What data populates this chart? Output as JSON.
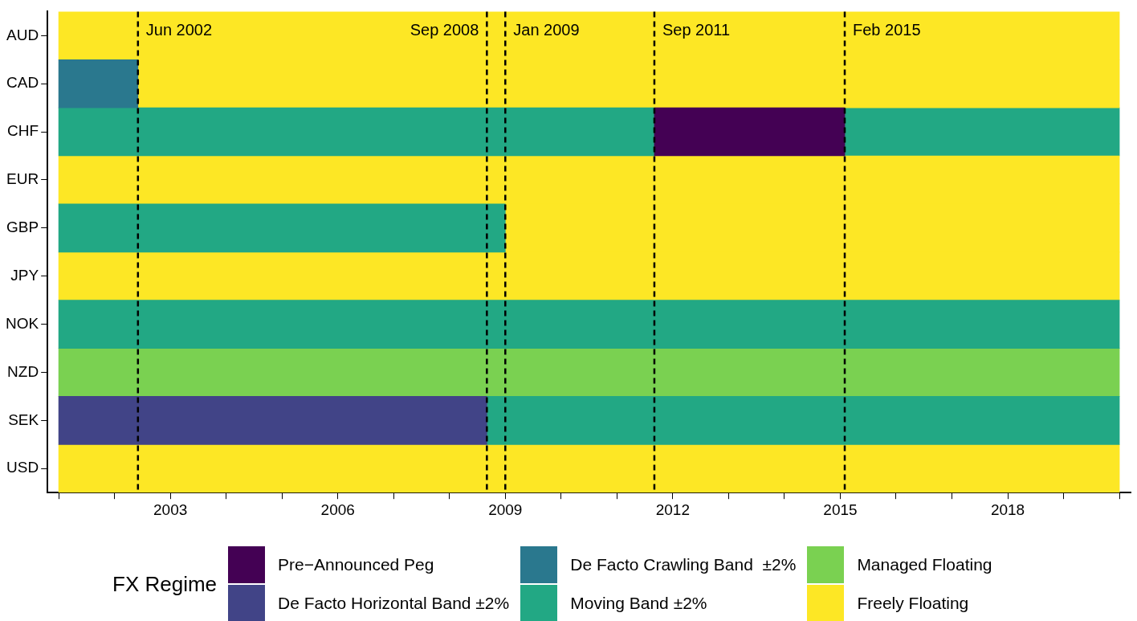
{
  "chart_data": {
    "type": "bar",
    "orientation": "horizontal",
    "legend": "bottom",
    "legend_title": "FX Regime",
    "categories": [
      "AUD",
      "CAD",
      "CHF",
      "EUR",
      "GBP",
      "JPY",
      "NOK",
      "NZD",
      "SEK",
      "USD"
    ],
    "xlim": [
      2000.8,
      2020.2
    ],
    "xticks": [
      {
        "value": 2001,
        "label": null
      },
      {
        "value": 2002,
        "label": null
      },
      2003,
      {
        "value": 2004,
        "label": null
      },
      {
        "value": 2005,
        "label": null
      },
      2006,
      {
        "value": 2007,
        "label": null
      },
      {
        "value": 2008,
        "label": null
      },
      2009,
      {
        "value": 2010,
        "label": null
      },
      {
        "value": 2011,
        "label": null
      },
      2012,
      {
        "value": 2013,
        "label": null
      },
      {
        "value": 2014,
        "label": null
      },
      2015,
      {
        "value": 2016,
        "label": null
      },
      {
        "value": 2017,
        "label": null
      },
      2018,
      {
        "value": 2019,
        "label": null
      },
      {
        "value": 2020,
        "label": null
      }
    ],
    "series": [
      {
        "name": "Pre−Announced Peg",
        "color": "#440154",
        "base": [
          null,
          null,
          2011.67,
          null,
          null,
          null,
          null,
          null,
          null,
          null
        ],
        "values": [
          null,
          null,
          3.41,
          null,
          null,
          null,
          null,
          null,
          null,
          null
        ]
      },
      {
        "name": "De Facto Horizontal Band ±2%",
        "color": "#414487",
        "base": [
          null,
          null,
          null,
          null,
          null,
          null,
          null,
          null,
          2001,
          null
        ],
        "values": [
          null,
          null,
          null,
          null,
          null,
          null,
          null,
          null,
          7.67,
          null
        ]
      },
      {
        "name": "De Facto Crawling Band  ±2%",
        "color": "#2a788e",
        "base": [
          null,
          2001,
          null,
          null,
          null,
          null,
          null,
          null,
          null,
          null
        ],
        "values": [
          null,
          1.42,
          null,
          null,
          null,
          null,
          null,
          null,
          null,
          null
        ]
      },
      {
        "name": "Moving Band ±2%",
        "color": "#22a884",
        "base": [
          null,
          null,
          2001,
          null,
          2001,
          null,
          2001,
          null,
          2008.67,
          null
        ],
        "values": [
          null,
          null,
          10.67,
          null,
          8,
          null,
          19,
          null,
          11.33,
          null
        ]
      },
      {
        "name": "Managed Floating",
        "color": "#7ad151",
        "base": [
          null,
          null,
          null,
          null,
          null,
          null,
          null,
          2001,
          null,
          null
        ],
        "values": [
          null,
          null,
          null,
          null,
          null,
          null,
          null,
          19,
          null,
          null
        ]
      },
      {
        "name": "Freely Floating",
        "color": "#fde725",
        "base": [
          2001,
          2002.42,
          null,
          2001,
          2009,
          2001,
          null,
          null,
          null,
          2001
        ],
        "values": [
          19,
          17.58,
          null,
          19,
          11,
          19,
          null,
          null,
          null,
          19
        ]
      },
      {
        "color": "#22a884",
        "base": [
          null,
          null,
          2015.08,
          null,
          null,
          null,
          null,
          null,
          null,
          null
        ],
        "values": [
          null,
          null,
          4.92,
          null,
          null,
          null,
          null,
          null,
          null,
          null
        ]
      }
    ],
    "ref_lines": [
      {
        "axis": "x",
        "value": 2002.42,
        "label": "Jun 2002",
        "line_style": "dashed",
        "color": "#000000"
      },
      {
        "axis": "x",
        "value": 2008.67,
        "label": "Sep 2008",
        "line_style": "dashed",
        "color": "#000000"
      },
      {
        "axis": "x",
        "value": 2009,
        "label": "Jan 2009",
        "line_style": "dashed",
        "color": "#000000"
      },
      {
        "axis": "x",
        "value": 2011.67,
        "label": "Sep 2011",
        "line_style": "dashed",
        "color": "#000000"
      },
      {
        "axis": "x",
        "value": 2015.08,
        "label": "Feb 2015",
        "line_style": "dashed",
        "color": "#000000"
      }
    ]
  }
}
